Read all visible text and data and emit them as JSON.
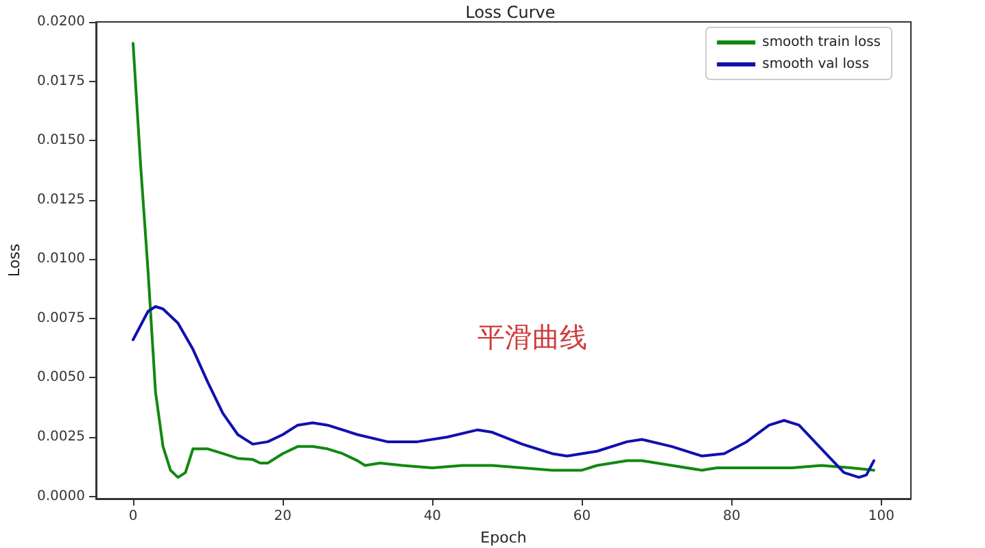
{
  "chart_data": {
    "type": "line",
    "title": "Loss Curve",
    "xlabel": "Epoch",
    "ylabel": "Loss",
    "annotations": [
      "平滑曲线"
    ],
    "xlim": [
      -4.95,
      103.95
    ],
    "xticks": [
      0,
      20,
      40,
      60,
      80,
      100
    ],
    "ylim": [
      -0.0001,
      0.02
    ],
    "yticks": [
      {
        "value": 0,
        "label": "0.0000"
      },
      {
        "value": 0.0025,
        "label": "0.0025"
      },
      {
        "value": 0.005,
        "label": "0.0050"
      },
      {
        "value": 0.0075,
        "label": "0.0075"
      },
      {
        "value": 0.01,
        "label": "0.0100"
      },
      {
        "value": 0.0125,
        "label": "0.0125"
      },
      {
        "value": 0.015,
        "label": "0.0150"
      },
      {
        "value": 0.0175,
        "label": "0.0175"
      },
      {
        "value": 0.02,
        "label": "0.0200"
      }
    ],
    "grid": false,
    "legend": "top right",
    "marker": "none",
    "line_style": "solid",
    "series": [
      {
        "name": "smooth train loss",
        "color": "#118811",
        "x": [
          0,
          1,
          2,
          3,
          4,
          5,
          6,
          7,
          8,
          10,
          12,
          14,
          16,
          17,
          18,
          20,
          22,
          24,
          26,
          28,
          30,
          31,
          33,
          36,
          40,
          44,
          48,
          52,
          56,
          60,
          62,
          64,
          66,
          68,
          72,
          76,
          78,
          84,
          88,
          92,
          96,
          99
        ],
        "values": [
          0.0191,
          0.014,
          0.0095,
          0.0044,
          0.0021,
          0.0011,
          0.0008,
          0.001,
          0.002,
          0.002,
          0.0018,
          0.0016,
          0.00155,
          0.0014,
          0.0014,
          0.0018,
          0.0021,
          0.0021,
          0.002,
          0.0018,
          0.0015,
          0.0013,
          0.0014,
          0.0013,
          0.0012,
          0.0013,
          0.0013,
          0.0012,
          0.0011,
          0.0011,
          0.0013,
          0.0014,
          0.0015,
          0.0015,
          0.0013,
          0.0011,
          0.0012,
          0.0012,
          0.0012,
          0.0013,
          0.0012,
          0.0011
        ]
      },
      {
        "name": "smooth val loss",
        "color": "#1010b0",
        "x": [
          0,
          2,
          3,
          4,
          6,
          8,
          10,
          12,
          14,
          16,
          18,
          20,
          22,
          24,
          26,
          30,
          34,
          38,
          42,
          46,
          48,
          52,
          56,
          58,
          62,
          66,
          68,
          72,
          76,
          79,
          82,
          85,
          87,
          89,
          92,
          95,
          97,
          98,
          99
        ],
        "values": [
          0.0066,
          0.0078,
          0.008,
          0.0079,
          0.0073,
          0.0062,
          0.0048,
          0.0035,
          0.0026,
          0.0022,
          0.0023,
          0.0026,
          0.003,
          0.0031,
          0.003,
          0.0026,
          0.0023,
          0.0023,
          0.0025,
          0.0028,
          0.0027,
          0.0022,
          0.0018,
          0.0017,
          0.0019,
          0.0023,
          0.0024,
          0.0021,
          0.0017,
          0.0018,
          0.0023,
          0.003,
          0.0032,
          0.003,
          0.002,
          0.001,
          0.0008,
          0.0009,
          0.0015
        ]
      }
    ]
  }
}
